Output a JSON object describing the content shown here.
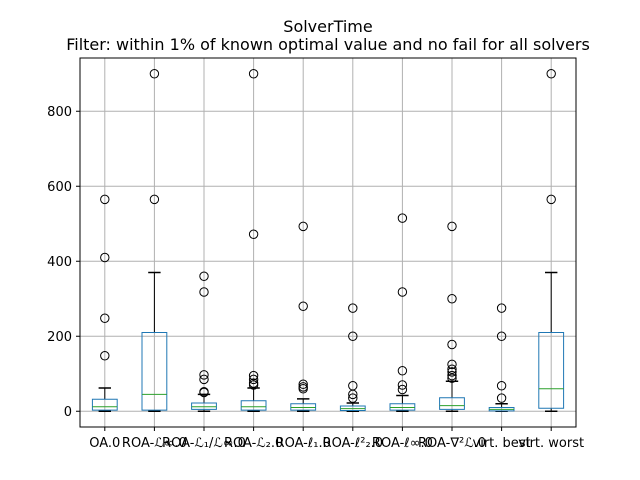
{
  "chart_data": {
    "type": "box",
    "title": "SolverTime",
    "subtitle": "Filter: within 1% of known optimal value and no fail for all solvers",
    "xlabel": "",
    "ylabel": "",
    "ylim": [
      -42,
      942
    ],
    "yticks": [
      0,
      200,
      400,
      600,
      800
    ],
    "grid": true,
    "categories": [
      "OA.0",
      "ROA-ℒ∞.0",
      "ROA-ℒ₁/ℒ∞.0",
      "ROA-ℒ₂.0",
      "ROA-ℓ₁.0",
      "ROA-ℓ²₂.0",
      "ROA-ℓ∞.0",
      "ROA-∇²ℒ.0",
      "virt. best",
      "virt. worst"
    ],
    "boxes": [
      {
        "whisker_low": 0,
        "q1": 3,
        "median": 12,
        "q3": 32,
        "whisker_high": 62,
        "outliers": [
          148,
          248,
          410,
          565
        ]
      },
      {
        "whisker_low": 0,
        "q1": 3,
        "median": 45,
        "q3": 210,
        "whisker_high": 370,
        "outliers": [
          565,
          900
        ]
      },
      {
        "whisker_low": 0,
        "q1": 5,
        "median": 12,
        "q3": 22,
        "whisker_high": 45,
        "outliers": [
          50,
          52,
          85,
          97,
          318,
          360
        ]
      },
      {
        "whisker_low": 0,
        "q1": 3,
        "median": 12,
        "q3": 28,
        "whisker_high": 62,
        "outliers": [
          70,
          75,
          85,
          95,
          472,
          900
        ]
      },
      {
        "whisker_low": 0,
        "q1": 3,
        "median": 10,
        "q3": 20,
        "whisker_high": 33,
        "outliers": [
          60,
          65,
          72,
          280,
          493
        ]
      },
      {
        "whisker_low": 0,
        "q1": 2,
        "median": 7,
        "q3": 14,
        "whisker_high": 22,
        "outliers": [
          35,
          45,
          68,
          200,
          275
        ]
      },
      {
        "whisker_low": 0,
        "q1": 3,
        "median": 10,
        "q3": 20,
        "whisker_high": 42,
        "outliers": [
          58,
          70,
          108,
          318,
          515
        ]
      },
      {
        "whisker_low": 0,
        "q1": 5,
        "median": 15,
        "q3": 36,
        "whisker_high": 80,
        "outliers": [
          88,
          95,
          105,
          112,
          125,
          178,
          300,
          493
        ]
      },
      {
        "whisker_low": 0,
        "q1": 1,
        "median": 5,
        "q3": 10,
        "whisker_high": 20,
        "outliers": [
          35,
          68,
          200,
          275
        ]
      },
      {
        "whisker_low": 0,
        "q1": 8,
        "median": 60,
        "q3": 210,
        "whisker_high": 370,
        "outliers": [
          565,
          900
        ]
      }
    ],
    "colors": {
      "box": "#1f77b4",
      "median": "#2ca02c",
      "grid": "#b0b0b0",
      "whisker": "#000000",
      "outlier": "#000000"
    }
  }
}
